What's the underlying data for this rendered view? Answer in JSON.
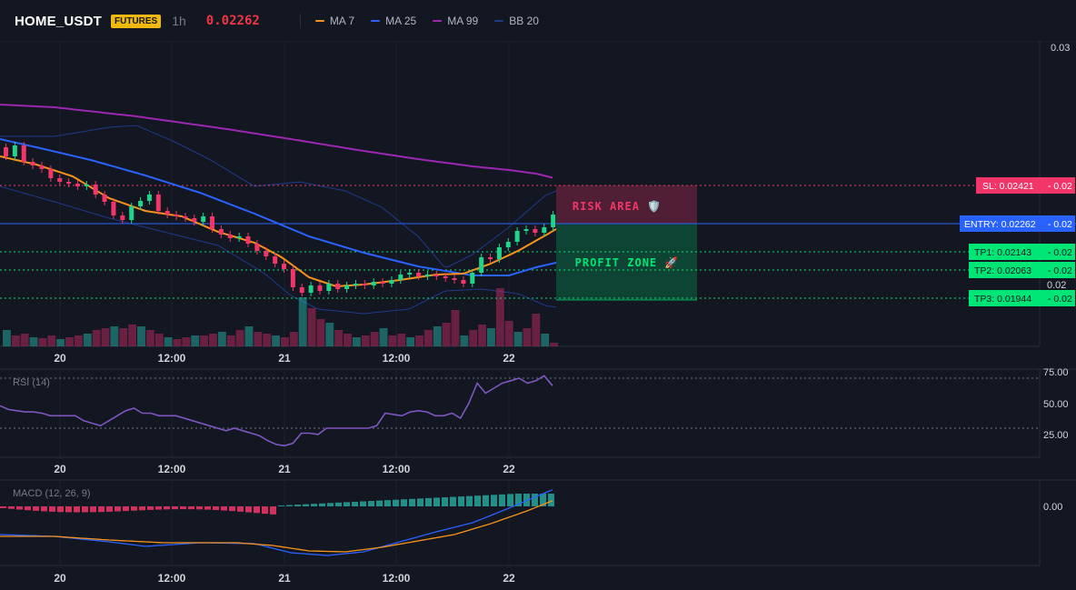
{
  "header": {
    "symbol": "HOME_USDT",
    "badge": "FUTURES",
    "timeframe": "1h",
    "last_price": "0.02262",
    "price_color": "#f23645"
  },
  "legend": [
    {
      "label": "MA 7",
      "color": "#f7931a"
    },
    {
      "label": "MA 25",
      "color": "#2962ff"
    },
    {
      "label": "MA 99",
      "color": "#9c27b0"
    },
    {
      "label": "BB 20",
      "color": "#1e3a8a"
    }
  ],
  "price_axis": {
    "top_label": "0.03",
    "mid_label": "0.02"
  },
  "levels": [
    {
      "key": "sl",
      "label": "SL: 0.02421",
      "suffix": "- 0.02",
      "value": 0.02421,
      "color": "#f23669",
      "text_color": "#ffffff"
    },
    {
      "key": "entry",
      "label": "ENTRY: 0.02262",
      "suffix": "- 0.02",
      "value": 0.02262,
      "color": "#2962ff",
      "text_color": "#ffffff"
    },
    {
      "key": "tp1",
      "label": "TP1: 0.02143",
      "suffix": "- 0.02",
      "value": 0.02143,
      "color": "#00e676",
      "text_color": "#131722"
    },
    {
      "key": "tp2",
      "label": "TP2: 0.02063",
      "suffix": "- 0.02",
      "value": 0.02063,
      "color": "#00e676",
      "text_color": "#131722"
    },
    {
      "key": "tp3",
      "label": "TP3: 0.01944",
      "suffix": "- 0.02",
      "value": 0.01944,
      "color": "#00e676",
      "text_color": "#131722"
    }
  ],
  "zones": {
    "risk_label": "RISK AREA 🛡️",
    "profit_label": "PROFIT ZONE 🚀"
  },
  "time_axis": [
    "20",
    "12:00",
    "21",
    "12:00",
    "22"
  ],
  "rsi": {
    "label": "RSI (14)",
    "ticks": [
      "75.00",
      "50.00",
      "25.00"
    ],
    "upper_band": 70,
    "lower_band": 30,
    "values": [
      48,
      45,
      44,
      43,
      43,
      42,
      40,
      40,
      40,
      40,
      36,
      34,
      32,
      36,
      40,
      44,
      46,
      42,
      42,
      40,
      40,
      40,
      38,
      36,
      34,
      32,
      30,
      28,
      30,
      28,
      26,
      24,
      20,
      17,
      16,
      18,
      26,
      26,
      25,
      30,
      30,
      30,
      30,
      30,
      30,
      32,
      42,
      41,
      40,
      43,
      44,
      43,
      40,
      40,
      42,
      38,
      50,
      66,
      58,
      62,
      66,
      68,
      70,
      66,
      68,
      72,
      64
    ]
  },
  "macd": {
    "label": "MACD (12, 26, 9)",
    "zero_label": "0.00"
  },
  "colors": {
    "background": "#131722",
    "up": "#22d38a",
    "down": "#f23669",
    "grid": "#1e222d"
  }
}
